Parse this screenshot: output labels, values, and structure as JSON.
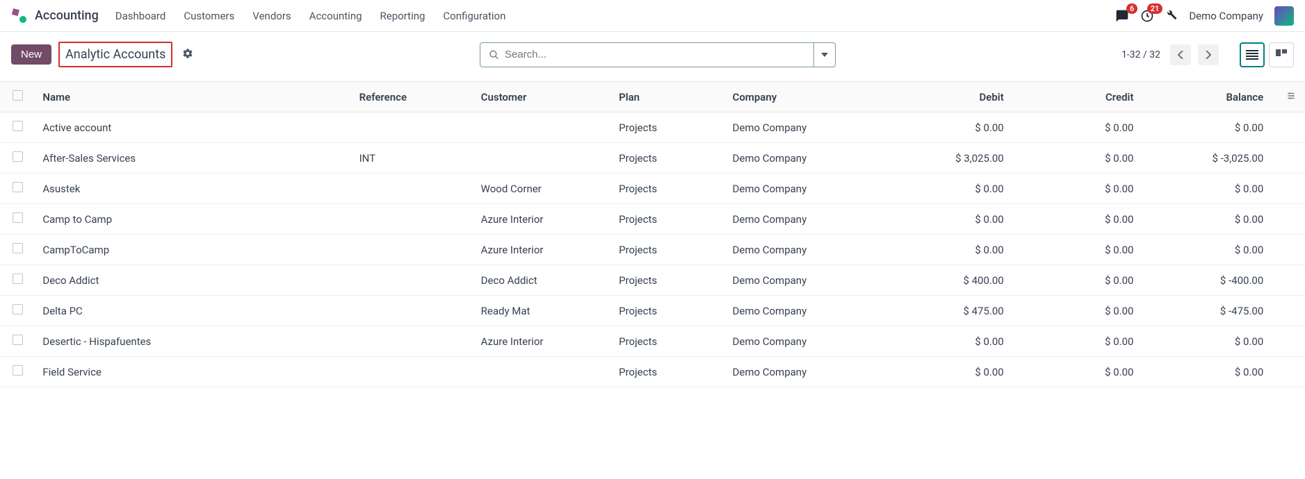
{
  "nav": {
    "app_name": "Accounting",
    "items": [
      "Dashboard",
      "Customers",
      "Vendors",
      "Accounting",
      "Reporting",
      "Configuration"
    ],
    "messages_badge": "6",
    "activities_badge": "21",
    "company": "Demo Company"
  },
  "controls": {
    "new_label": "New",
    "breadcrumb": "Analytic Accounts",
    "search_placeholder": "Search...",
    "page_counter": "1-32 / 32"
  },
  "table": {
    "columns": {
      "name": "Name",
      "reference": "Reference",
      "customer": "Customer",
      "plan": "Plan",
      "company": "Company",
      "debit": "Debit",
      "credit": "Credit",
      "balance": "Balance"
    },
    "rows": [
      {
        "name": "Active account",
        "reference": "",
        "customer": "",
        "plan": "Projects",
        "company": "Demo Company",
        "debit": "$ 0.00",
        "credit": "$ 0.00",
        "balance": "$ 0.00"
      },
      {
        "name": "After-Sales Services",
        "reference": "INT",
        "customer": "",
        "plan": "Projects",
        "company": "Demo Company",
        "debit": "$ 3,025.00",
        "credit": "$ 0.00",
        "balance": "$ -3,025.00"
      },
      {
        "name": "Asustek",
        "reference": "",
        "customer": "Wood Corner",
        "plan": "Projects",
        "company": "Demo Company",
        "debit": "$ 0.00",
        "credit": "$ 0.00",
        "balance": "$ 0.00"
      },
      {
        "name": "Camp to Camp",
        "reference": "",
        "customer": "Azure Interior",
        "plan": "Projects",
        "company": "Demo Company",
        "debit": "$ 0.00",
        "credit": "$ 0.00",
        "balance": "$ 0.00"
      },
      {
        "name": "CampToCamp",
        "reference": "",
        "customer": "Azure Interior",
        "plan": "Projects",
        "company": "Demo Company",
        "debit": "$ 0.00",
        "credit": "$ 0.00",
        "balance": "$ 0.00"
      },
      {
        "name": "Deco Addict",
        "reference": "",
        "customer": "Deco Addict",
        "plan": "Projects",
        "company": "Demo Company",
        "debit": "$ 400.00",
        "credit": "$ 0.00",
        "balance": "$ -400.00"
      },
      {
        "name": "Delta PC",
        "reference": "",
        "customer": "Ready Mat",
        "plan": "Projects",
        "company": "Demo Company",
        "debit": "$ 475.00",
        "credit": "$ 0.00",
        "balance": "$ -475.00"
      },
      {
        "name": "Desertic - Hispafuentes",
        "reference": "",
        "customer": "Azure Interior",
        "plan": "Projects",
        "company": "Demo Company",
        "debit": "$ 0.00",
        "credit": "$ 0.00",
        "balance": "$ 0.00"
      },
      {
        "name": "Field Service",
        "reference": "",
        "customer": "",
        "plan": "Projects",
        "company": "Demo Company",
        "debit": "$ 0.00",
        "credit": "$ 0.00",
        "balance": "$ 0.00"
      }
    ]
  },
  "colors": {
    "accent": "#714b67",
    "highlight_border": "#d22f2f",
    "teal": "#017e84",
    "badge": "#d63031"
  }
}
